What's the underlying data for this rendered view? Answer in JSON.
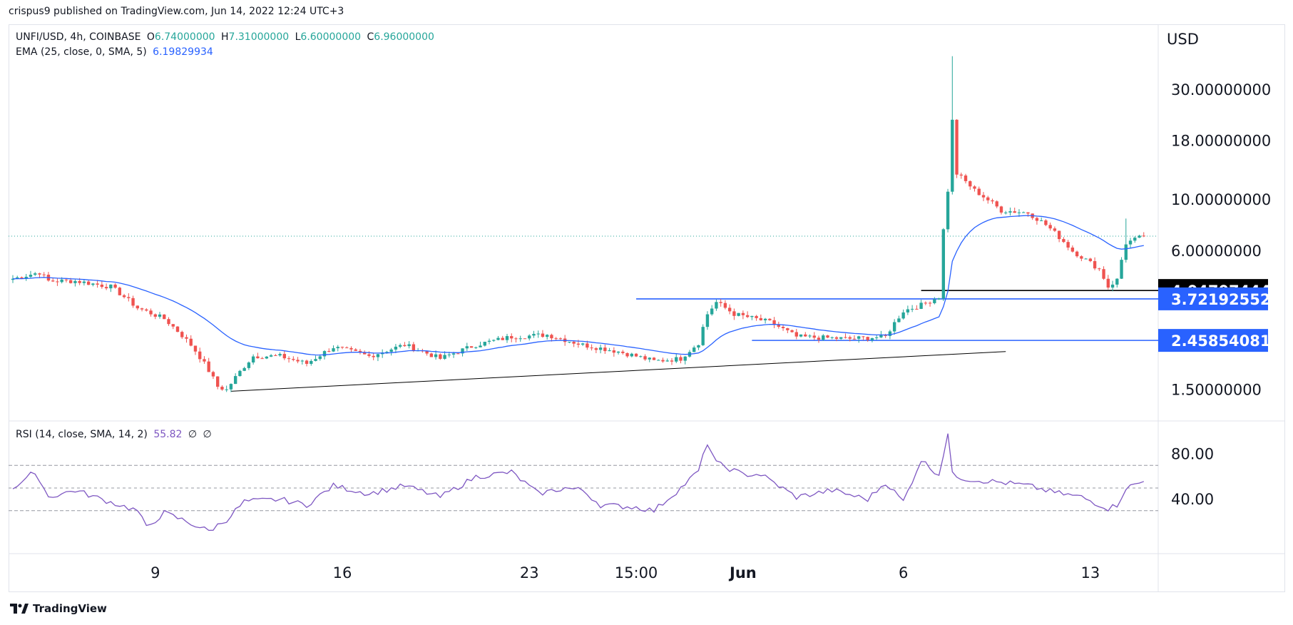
{
  "publish_line": "crispus9 published on TradingView.com, Jun 14, 2022 12:24 UTC+3",
  "branding": "TradingView",
  "colors": {
    "up": "#26a69a",
    "down": "#ef5350",
    "ema": "#2962ff",
    "rsi": "#7e57c2",
    "hline": "#2962ff",
    "trend": "#000000",
    "label_blue": "#2962ff",
    "label_black": "#000000"
  },
  "chart_data": [
    {
      "type": "candlestick",
      "symbol": "UNFI/USD, 4h, COINBASE",
      "ohlc": {
        "O": "O",
        "o": "6.74000000",
        "H": "H",
        "h": "7.31000000",
        "L": "L",
        "l": "6.60000000",
        "C": "C",
        "c": "6.96000000"
      },
      "indicator": {
        "name": "EMA (25, close, 0, SMA, 5)",
        "value": "6.19829934"
      },
      "axis_title": "USD",
      "scale": "log",
      "ylim": [
        1.1,
        48
      ],
      "y_ticks": [
        {
          "label": "30.00000000",
          "value": 30
        },
        {
          "label": "18.00000000",
          "value": 18
        },
        {
          "label": "10.00000000",
          "value": 10
        },
        {
          "label": "6.00000000",
          "value": 6
        },
        {
          "label": "1.50000000",
          "value": 1.5
        }
      ],
      "x_ticks": [
        {
          "label": "9",
          "index": 32
        },
        {
          "label": "16",
          "index": 74
        },
        {
          "label": "23",
          "index": 116
        },
        {
          "label": "15:00",
          "index": 140
        },
        {
          "label": "Jun",
          "index": 164
        },
        {
          "label": "6",
          "index": 200
        },
        {
          "label": "13",
          "index": 242
        }
      ],
      "price_labels": [
        {
          "value": "4.04707444",
          "style": "black"
        },
        {
          "value": "3.72192552",
          "style": "blue"
        },
        {
          "value": "2.45854081",
          "style": "blue"
        }
      ],
      "levels": [
        {
          "value": 4.047,
          "from": 204,
          "to": 262,
          "color": "black"
        },
        {
          "value": 3.722,
          "from": 140,
          "to": 262,
          "color": "blue"
        },
        {
          "value": 2.4585,
          "from": 166,
          "to": 262,
          "color": "blue"
        }
      ],
      "trendline": {
        "from": {
          "index": 49,
          "value": 1.48
        },
        "to": {
          "index": 223,
          "value": 2.2
        }
      },
      "last_price": 6.96,
      "anchors": [
        [
          0,
          4.55
        ],
        [
          6,
          4.85
        ],
        [
          8,
          4.45
        ],
        [
          14,
          4.45
        ],
        [
          22,
          4.2
        ],
        [
          28,
          3.4
        ],
        [
          34,
          3.05
        ],
        [
          40,
          2.35
        ],
        [
          46,
          1.55
        ],
        [
          48,
          1.5
        ],
        [
          54,
          2.1
        ],
        [
          60,
          2.1
        ],
        [
          66,
          1.95
        ],
        [
          72,
          2.3
        ],
        [
          80,
          2.1
        ],
        [
          88,
          2.35
        ],
        [
          96,
          2.05
        ],
        [
          104,
          2.35
        ],
        [
          112,
          2.55
        ],
        [
          120,
          2.6
        ],
        [
          128,
          2.35
        ],
        [
          136,
          2.2
        ],
        [
          144,
          2.0
        ],
        [
          150,
          2.05
        ],
        [
          154,
          2.4
        ],
        [
          156,
          3.2
        ],
        [
          158,
          3.6
        ],
        [
          162,
          3.2
        ],
        [
          170,
          2.95
        ],
        [
          176,
          2.55
        ],
        [
          188,
          2.5
        ],
        [
          196,
          2.55
        ],
        [
          200,
          3.3
        ],
        [
          204,
          3.5
        ],
        [
          208,
          3.8
        ],
        [
          210,
          11.0
        ],
        [
          211,
          22.0
        ],
        [
          212,
          13.0
        ],
        [
          216,
          11.0
        ],
        [
          222,
          9.0
        ],
        [
          228,
          8.8
        ],
        [
          232,
          7.8
        ],
        [
          238,
          6.0
        ],
        [
          244,
          5.0
        ],
        [
          246,
          4.2
        ],
        [
          248,
          4.5
        ],
        [
          250,
          6.5
        ],
        [
          254,
          6.96
        ]
      ],
      "spikes": [
        {
          "index": 211,
          "high": 42
        },
        {
          "index": 250,
          "high": 8.3
        }
      ]
    },
    {
      "type": "line",
      "indicator": {
        "name": "RSI (14, close, SMA, 14, 2)",
        "value": "55.82",
        "extra1": "∅",
        "extra2": "∅"
      },
      "ylim": [
        -8,
        108
      ],
      "y_ticks": [
        {
          "label": "80.00",
          "value": 80
        },
        {
          "label": "40.00",
          "value": 40
        }
      ],
      "bands": [
        70,
        50,
        30
      ],
      "anchors": [
        [
          0,
          50
        ],
        [
          4,
          62
        ],
        [
          6,
          58
        ],
        [
          8,
          42
        ],
        [
          14,
          48
        ],
        [
          20,
          40
        ],
        [
          28,
          30
        ],
        [
          30,
          15
        ],
        [
          34,
          28
        ],
        [
          38,
          22
        ],
        [
          44,
          12
        ],
        [
          48,
          22
        ],
        [
          52,
          38
        ],
        [
          60,
          40
        ],
        [
          66,
          35
        ],
        [
          72,
          52
        ],
        [
          80,
          45
        ],
        [
          88,
          52
        ],
        [
          96,
          42
        ],
        [
          104,
          60
        ],
        [
          112,
          64
        ],
        [
          118,
          45
        ],
        [
          124,
          50
        ],
        [
          128,
          48
        ],
        [
          132,
          35
        ],
        [
          140,
          33
        ],
        [
          144,
          30
        ],
        [
          150,
          50
        ],
        [
          154,
          65
        ],
        [
          156,
          90
        ],
        [
          158,
          72
        ],
        [
          164,
          62
        ],
        [
          168,
          62
        ],
        [
          176,
          42
        ],
        [
          184,
          48
        ],
        [
          192,
          40
        ],
        [
          196,
          55
        ],
        [
          200,
          38
        ],
        [
          204,
          75
        ],
        [
          206,
          68
        ],
        [
          208,
          62
        ],
        [
          210,
          98
        ],
        [
          211,
          62
        ],
        [
          214,
          58
        ],
        [
          222,
          55
        ],
        [
          228,
          52
        ],
        [
          234,
          46
        ],
        [
          240,
          42
        ],
        [
          246,
          32
        ],
        [
          248,
          35
        ],
        [
          250,
          50
        ],
        [
          254,
          55.82
        ]
      ]
    }
  ]
}
